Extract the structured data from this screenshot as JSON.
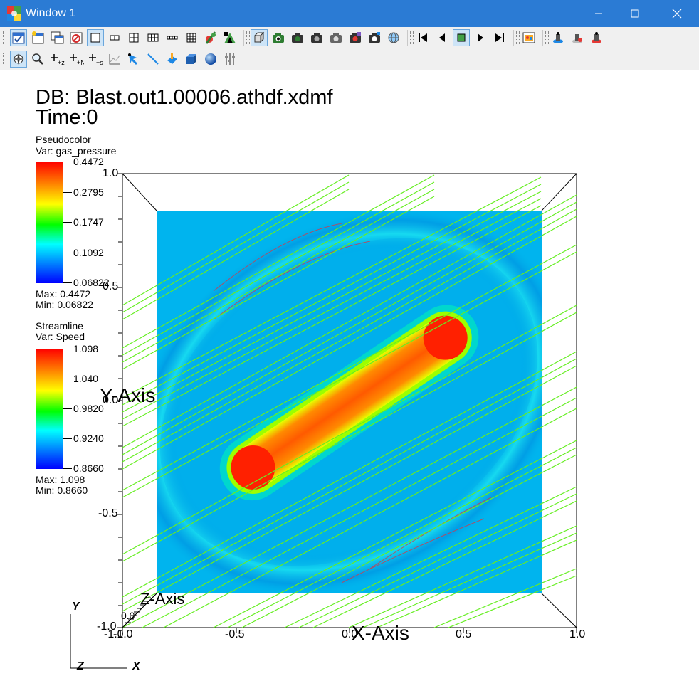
{
  "window": {
    "title": "Window 1"
  },
  "toolbar1": {
    "buttons": [
      "apply-icon",
      "new-window-icon",
      "clone-window-icon",
      "delete-window-icon",
      "layout-1x1-icon",
      "layout-1x2-icon",
      "layout-2x2-icon",
      "layout-1x3-icon",
      "layout-3x3-icon",
      "pick-lock-icon",
      "tool-icon",
      "view-3d-icon",
      "camera-icon",
      "camera-icon",
      "camera-icon",
      "camera-icon",
      "camera-icon",
      "camera-icon",
      "globe-icon",
      "rewind-icon",
      "step-back-icon",
      "stop-icon",
      "play-icon",
      "step-forward-icon",
      "save-image-icon",
      "engine-icon",
      "engine-icon",
      "engine-icon"
    ]
  },
  "toolbar2": {
    "buttons": [
      "navigate-icon",
      "zoom-icon",
      "zone-pick-icon",
      "node-pick-icon",
      "spreadsheet-pick-icon",
      "curve-pick-icon",
      "point-tool-icon",
      "line-tool-icon",
      "plane-tool-icon",
      "box-tool-icon",
      "sphere-tool-icon",
      "axis-restrict-icon"
    ],
    "pick_labels": [
      "+z",
      "+N",
      "+s"
    ]
  },
  "plot": {
    "db_line": "DB: Blast.out1.00006.athdf.xdmf",
    "time_line": "Time:0",
    "legend_pressure": {
      "plot_type": "Pseudocolor",
      "var": "Var: gas_pressure",
      "ticks": [
        "0.4472",
        "0.2795",
        "0.1747",
        "0.1092",
        "0.06822"
      ],
      "max": "Max:  0.4472",
      "min": "Min:  0.06822"
    },
    "legend_speed": {
      "plot_type": "Streamline",
      "var": "Var: Speed",
      "ticks": [
        "1.098",
        "1.040",
        "0.9820",
        "0.9240",
        "0.8660"
      ],
      "max": "Max:  1.098",
      "min": "Min:  0.8660"
    },
    "axes": {
      "y_title": "Y-Axis",
      "x_title": "X-Axis",
      "z_title": "Z-Axis",
      "y_ticks": [
        "1.0",
        "0.5",
        "0.0",
        "-0.5",
        "-1.0"
      ],
      "x_ticks": [
        "-1.0",
        "-0.5",
        "0.0",
        "0.5",
        "1.0"
      ],
      "corner_x_start": "-1.0",
      "corner_z": "0.0",
      "triad": {
        "y": "Y",
        "x": "X",
        "z": "Z"
      }
    }
  }
}
